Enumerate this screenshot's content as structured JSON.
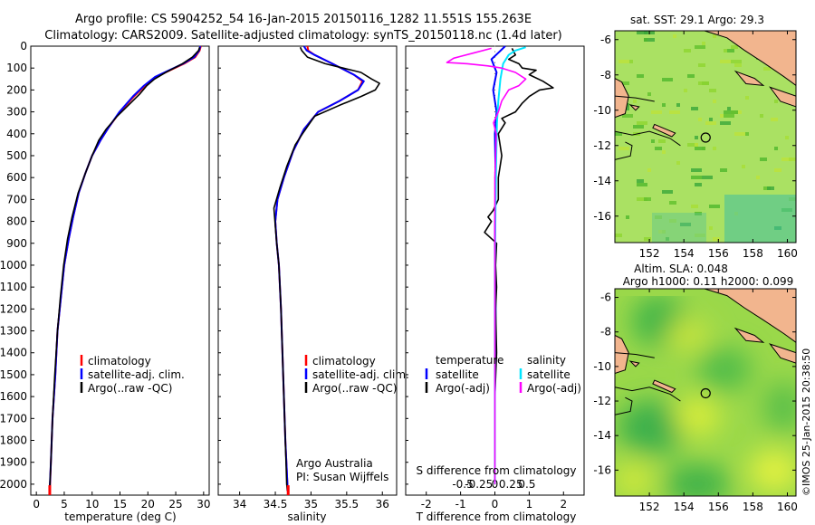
{
  "title": {
    "line1": "Argo profile: CS 5904252_54 16-Jan-2015 20150116_1282 11.551S 155.263E",
    "line2": "Climatology: CARS2009. Satellite-adjusted climatology: synTS_20150118.nc (1.4d later)"
  },
  "colors": {
    "clim": "#ff0000",
    "sat": "#0000ff",
    "argo": "#000000",
    "satS": "#00e5ff",
    "argoS": "#ff00ff",
    "land": "#f2b58e"
  },
  "chart_data": [
    {
      "id": "temperature",
      "type": "line",
      "xlabel": "temperature (deg C)",
      "xlim": [
        -1,
        31
      ],
      "xticks": [
        0,
        5,
        10,
        15,
        20,
        25,
        30
      ],
      "ylim": [
        2050,
        0
      ],
      "yticks": [
        0,
        100,
        200,
        300,
        400,
        500,
        600,
        700,
        800,
        900,
        1000,
        1100,
        1200,
        1300,
        1400,
        1500,
        1600,
        1700,
        1800,
        1900,
        2000
      ],
      "legend": [
        "climatology",
        "satellite-adj. clim.",
        "Argo(..raw -QC)"
      ],
      "series": [
        {
          "name": "climatology",
          "color": "#ff0000",
          "points": [
            [
              29.5,
              0
            ],
            [
              29.3,
              20
            ],
            [
              28.5,
              50
            ],
            [
              26.5,
              80
            ],
            [
              24,
              110
            ],
            [
              21.5,
              140
            ],
            [
              19.5,
              180
            ],
            [
              17.5,
              230
            ],
            [
              15,
              300
            ],
            [
              13,
              370
            ],
            [
              11.5,
              430
            ],
            [
              10,
              500
            ],
            [
              8.8,
              580
            ],
            [
              7.6,
              670
            ],
            [
              6.6,
              780
            ],
            [
              5.8,
              880
            ],
            [
              5,
              1000
            ],
            [
              4.4,
              1150
            ],
            [
              3.8,
              1300
            ],
            [
              3.4,
              1500
            ],
            [
              2.9,
              1700
            ],
            [
              2.6,
              1900
            ],
            [
              2.4,
              2050
            ]
          ]
        },
        {
          "name": "satellite-adj. clim.",
          "color": "#0000ff",
          "points": [
            [
              29.4,
              0
            ],
            [
              29.2,
              20
            ],
            [
              28.3,
              50
            ],
            [
              26.3,
              80
            ],
            [
              23.8,
              110
            ],
            [
              21.3,
              140
            ],
            [
              19.3,
              180
            ],
            [
              17.3,
              230
            ],
            [
              14.9,
              300
            ],
            [
              13,
              370
            ],
            [
              11.5,
              430
            ],
            [
              10,
              500
            ],
            [
              8.8,
              580
            ],
            [
              7.6,
              670
            ],
            [
              6.6,
              780
            ],
            [
              5.8,
              880
            ],
            [
              5,
              1000
            ],
            [
              4.4,
              1150
            ],
            [
              3.8,
              1300
            ],
            [
              3.4,
              1500
            ],
            [
              2.9,
              1700
            ],
            [
              2.6,
              1900
            ],
            [
              2.4,
              2020
            ]
          ]
        },
        {
          "name": "Argo",
          "color": "#000000",
          "points": [
            [
              29.3,
              5
            ],
            [
              29.1,
              20
            ],
            [
              28,
              50
            ],
            [
              26.2,
              80
            ],
            [
              23.2,
              120
            ],
            [
              21.2,
              150
            ],
            [
              19.8,
              180
            ],
            [
              18.5,
              220
            ],
            [
              16.5,
              270
            ],
            [
              14.5,
              320
            ],
            [
              12.5,
              380
            ],
            [
              11.2,
              430
            ],
            [
              10,
              500
            ],
            [
              8.8,
              580
            ],
            [
              7.5,
              670
            ],
            [
              6.4,
              780
            ],
            [
              5.6,
              880
            ],
            [
              4.9,
              1000
            ],
            [
              4.3,
              1150
            ],
            [
              3.8,
              1300
            ],
            [
              3.3,
              1500
            ],
            [
              2.9,
              1700
            ],
            [
              2.6,
              1900
            ],
            [
              2.4,
              2020
            ]
          ]
        }
      ]
    },
    {
      "id": "salinity",
      "type": "line",
      "xlabel": "salinity",
      "xlim": [
        33.7,
        36.2
      ],
      "xticks": [
        34,
        34.5,
        35,
        35.5,
        36
      ],
      "xticklabels": [
        "34",
        "34.5",
        "35",
        "35.5",
        "36"
      ],
      "ylim": [
        2050,
        0
      ],
      "legend": [
        "climatology",
        "satellite-adj. clim.",
        "Argo(..raw -QC)"
      ],
      "annotation": [
        "Argo Australia",
        "PI: Susan Wijffels"
      ],
      "series": [
        {
          "name": "climatology",
          "color": "#ff0000",
          "points": [
            [
              34.95,
              0
            ],
            [
              34.96,
              20
            ],
            [
              35.05,
              40
            ],
            [
              35.3,
              80
            ],
            [
              35.6,
              130
            ],
            [
              35.72,
              160
            ],
            [
              35.66,
              200
            ],
            [
              35.4,
              250
            ],
            [
              35.1,
              300
            ],
            [
              34.9,
              380
            ],
            [
              34.75,
              480
            ],
            [
              34.62,
              600
            ],
            [
              34.53,
              700
            ],
            [
              34.5,
              800
            ],
            [
              34.52,
              900
            ],
            [
              34.55,
              1000
            ],
            [
              34.58,
              1200
            ],
            [
              34.61,
              1500
            ],
            [
              34.64,
              1800
            ],
            [
              34.67,
              2000
            ],
            [
              34.68,
              2050
            ]
          ]
        },
        {
          "name": "satellite-adj. clim.",
          "color": "#0000ff",
          "points": [
            [
              34.9,
              0
            ],
            [
              34.94,
              20
            ],
            [
              35.05,
              40
            ],
            [
              35.3,
              80
            ],
            [
              35.6,
              130
            ],
            [
              35.74,
              160
            ],
            [
              35.66,
              200
            ],
            [
              35.4,
              250
            ],
            [
              35.1,
              300
            ],
            [
              34.9,
              380
            ],
            [
              34.75,
              480
            ],
            [
              34.62,
              600
            ],
            [
              34.53,
              700
            ],
            [
              34.5,
              800
            ],
            [
              34.52,
              900
            ],
            [
              34.55,
              1000
            ],
            [
              34.58,
              1200
            ],
            [
              34.61,
              1500
            ],
            [
              34.64,
              1800
            ],
            [
              34.67,
              2000
            ],
            [
              34.67,
              2030
            ]
          ]
        },
        {
          "name": "Argo",
          "color": "#000000",
          "points": [
            [
              34.85,
              5
            ],
            [
              34.87,
              20
            ],
            [
              34.95,
              50
            ],
            [
              35.2,
              80
            ],
            [
              35.45,
              100
            ],
            [
              35.7,
              120
            ],
            [
              35.85,
              150
            ],
            [
              35.96,
              170
            ],
            [
              35.9,
              200
            ],
            [
              35.7,
              230
            ],
            [
              35.4,
              270
            ],
            [
              35.05,
              320
            ],
            [
              34.88,
              400
            ],
            [
              34.78,
              450
            ],
            [
              34.66,
              550
            ],
            [
              34.56,
              650
            ],
            [
              34.48,
              740
            ],
            [
              34.5,
              820
            ],
            [
              34.52,
              900
            ],
            [
              34.55,
              1000
            ],
            [
              34.58,
              1200
            ],
            [
              34.61,
              1500
            ],
            [
              34.64,
              1800
            ],
            [
              34.66,
              2000
            ],
            [
              34.67,
              2030
            ]
          ]
        }
      ]
    },
    {
      "id": "difference",
      "type": "line",
      "xlabel": "T difference from climatology",
      "xlabel2": "S difference from climatology",
      "xlim": [
        -2.6,
        2.6
      ],
      "xticks": [
        -2,
        -1,
        0,
        1,
        2
      ],
      "stop_xticks": [
        -0.5,
        -0.25,
        0,
        0.25,
        0.5
      ],
      "ylim": [
        2050,
        0
      ],
      "legend_headers": [
        "temperature",
        "salinity"
      ],
      "legend": [
        "satellite",
        "Argo(-adj)",
        "satellite",
        "Argo(-adj)"
      ],
      "series": [
        {
          "name": "T satellite",
          "color": "#0000ff",
          "points": [
            [
              0.3,
              0
            ],
            [
              0.1,
              30
            ],
            [
              -0.1,
              60
            ],
            [
              0.05,
              120
            ],
            [
              -0.05,
              200
            ],
            [
              0.05,
              300
            ],
            [
              0,
              400
            ],
            [
              0.02,
              600
            ],
            [
              0,
              900
            ],
            [
              0.02,
              1200
            ],
            [
              0,
              1600
            ],
            [
              0,
              2000
            ]
          ]
        },
        {
          "name": "T Argo(-adj)",
          "color": "#000000",
          "points": [
            [
              0.5,
              10
            ],
            [
              0.6,
              40
            ],
            [
              0.4,
              60
            ],
            [
              0.7,
              80
            ],
            [
              0.8,
              100
            ],
            [
              1.2,
              110
            ],
            [
              1.0,
              130
            ],
            [
              1.4,
              160
            ],
            [
              1.7,
              190
            ],
            [
              1.3,
              200
            ],
            [
              1.0,
              230
            ],
            [
              0.8,
              260
            ],
            [
              0.6,
              300
            ],
            [
              0.2,
              330
            ],
            [
              0.3,
              350
            ],
            [
              0.1,
              400
            ],
            [
              0.2,
              500
            ],
            [
              0.1,
              600
            ],
            [
              0.1,
              700
            ],
            [
              -0.05,
              750
            ],
            [
              -0.2,
              780
            ],
            [
              -0.1,
              800
            ],
            [
              -0.3,
              850
            ],
            [
              0.05,
              900
            ],
            [
              0.02,
              1000
            ],
            [
              0.05,
              1100
            ],
            [
              0.02,
              1200
            ],
            [
              0.05,
              1400
            ],
            [
              0,
              1600
            ],
            [
              0,
              2000
            ]
          ]
        },
        {
          "name": "S satellite",
          "color": "#00e5ff",
          "points": [
            [
              0.45,
              5
            ],
            [
              0.3,
              20
            ],
            [
              0.2,
              40
            ],
            [
              0.12,
              80
            ],
            [
              0.08,
              150
            ],
            [
              0.05,
              250
            ],
            [
              0.03,
              350
            ],
            [
              0.02,
              500
            ],
            [
              0.01,
              700
            ],
            [
              0,
              1000
            ],
            [
              0,
              2000
            ]
          ]
        },
        {
          "name": "S Argo(-adj)",
          "color": "#ff00ff",
          "points": [
            [
              -0.05,
              10
            ],
            [
              -0.3,
              30
            ],
            [
              -0.6,
              55
            ],
            [
              -0.7,
              75
            ],
            [
              -0.4,
              80
            ],
            [
              -0.1,
              90
            ],
            [
              0.1,
              100
            ],
            [
              0.3,
              120
            ],
            [
              0.45,
              150
            ],
            [
              0.35,
              180
            ],
            [
              0.2,
              200
            ],
            [
              0.1,
              250
            ],
            [
              0.05,
              300
            ],
            [
              -0.02,
              350
            ],
            [
              0.02,
              400
            ],
            [
              0.01,
              500
            ],
            [
              0,
              600
            ],
            [
              0,
              800
            ],
            [
              0,
              1000
            ],
            [
              0,
              2000
            ]
          ]
        }
      ]
    }
  ],
  "maps": {
    "sst": {
      "title": "sat. SST: 29.1 Argo: 29.3"
    },
    "sla": {
      "title1": "Altim. SLA: 0.048",
      "title2": "Argo h1000: 0.11 h2000: 0.099"
    },
    "xticks": [
      152,
      154,
      156,
      158,
      160
    ],
    "yticks": [
      -6,
      -8,
      -10,
      -12,
      -14,
      -16
    ],
    "xlim": [
      150,
      160.5
    ],
    "ylim": [
      -17.5,
      -5.5
    ],
    "float_position": {
      "lon": 155.263,
      "lat": -11.551
    }
  },
  "credit": "©IMOS 25-Jan-2015 20:38:50"
}
